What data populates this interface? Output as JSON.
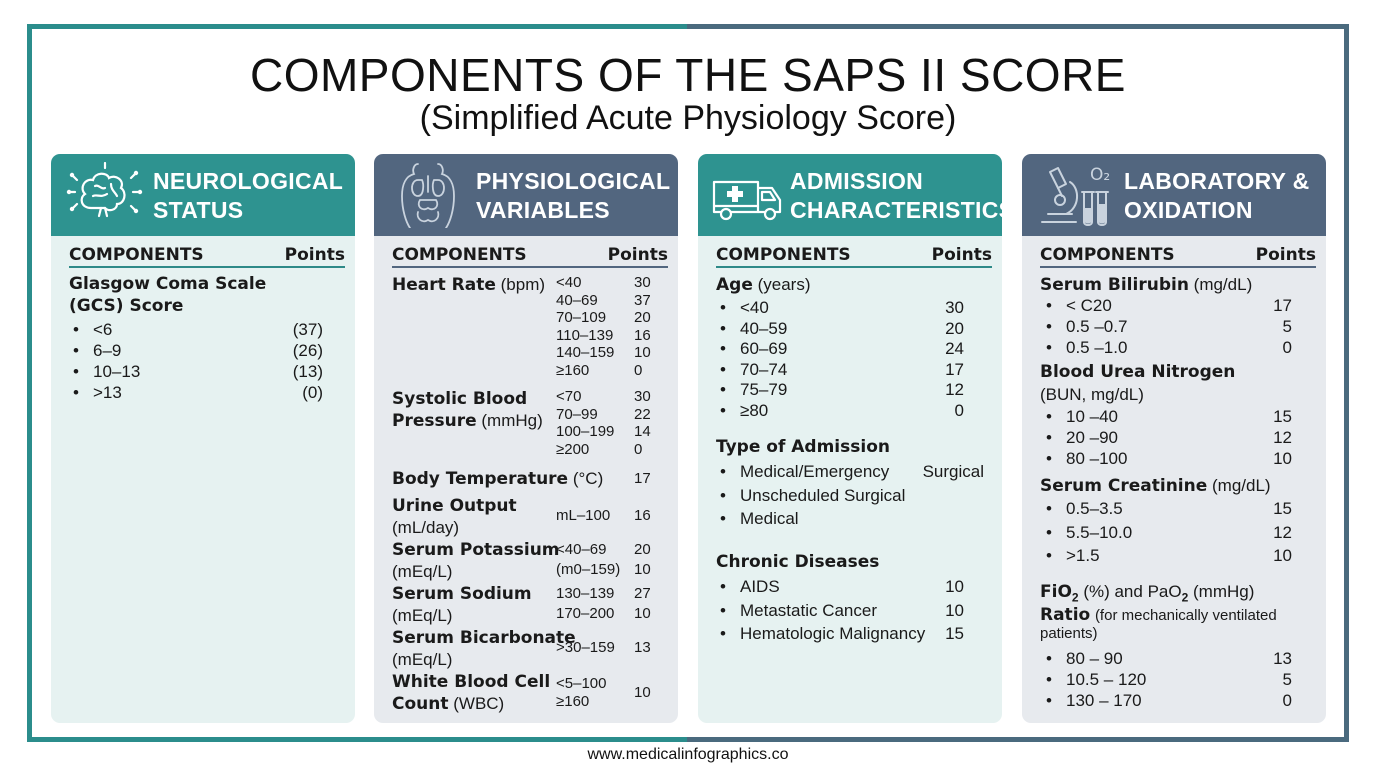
{
  "title": "COMPONENTS OF THE SAPS II SCORE",
  "subtitle": "(Simplified Acute Physiology Score)",
  "footer": "www.medicalinfographics.co",
  "colors": {
    "teal": "#2e9390",
    "slate": "#52667f",
    "teal_bg": "#e6f2f1",
    "slate_bg": "#e7eaee"
  },
  "col_components": "COMPONENTS",
  "col_points": "Points",
  "neuro": {
    "title_1": "NEUROLOGICAL",
    "title_2": "STATUS",
    "icon": "brain-icon",
    "gcs_1": "Glasgow Coma Scale",
    "gcs_2": "(GCS) Score",
    "items": [
      {
        "range": "<6",
        "points": "(37)"
      },
      {
        "range": "6–9",
        "points": "(26)"
      },
      {
        "range": "10–13",
        "points": "(13)"
      },
      {
        "range": ">13",
        "points": "(0)"
      }
    ]
  },
  "physio": {
    "title_1": "PHYSIOLOGICAL",
    "title_2": "VARIABLES",
    "icon": "organs-icon",
    "hr_label": "Heart Rate",
    "hr_unit": "(bpm)",
    "hr": [
      {
        "range": "<40",
        "points": "30"
      },
      {
        "range": "40–69",
        "points": "37"
      },
      {
        "range": "70–109",
        "points": "20"
      },
      {
        "range": "110–139",
        "points": "16"
      },
      {
        "range": "140–159",
        "points": "10"
      },
      {
        "range": "≥160",
        "points": "0"
      }
    ],
    "sbp_label_1": "Systolic Blood",
    "sbp_label_2": "Pressure",
    "sbp_unit": "(mmHg)",
    "sbp": [
      {
        "range": "<70",
        "points": "30"
      },
      {
        "range": "70–99",
        "points": "22"
      },
      {
        "range": "100–199",
        "points": "14"
      },
      {
        "range": "≥200",
        "points": "0"
      }
    ],
    "temp_label": "Body Temperature",
    "temp_unit": "(°C)",
    "temp_points": "17",
    "urine_label": "Urine Output",
    "urine_unit": "(mL/day)",
    "urine_range": "mL–100",
    "urine_points": "16",
    "potassium_label": "Serum Potassium",
    "potassium_unit": "(mEq/L)",
    "potassium": [
      {
        "range": "<40–69",
        "points": "20"
      },
      {
        "range": "(m0–159)",
        "points": "10"
      }
    ],
    "sodium_label": "Serum Sodium",
    "sodium_unit": "(mEq/L)",
    "sodium": [
      {
        "range": "130–139",
        "points": "27"
      },
      {
        "range": "170–200",
        "points": "10"
      }
    ],
    "bicarb_label": "Serum Bicarbonate",
    "bicarb_unit": "(mEq/L)",
    "bicarb_range": ">30–159",
    "bicarb_points": "13",
    "wbc_label_1": "White Blood Cell",
    "wbc_label_2": "Count",
    "wbc_unit": "(WBC)",
    "wbc_range_1": "<5–100",
    "wbc_range_2": "≥160",
    "wbc_points": "10"
  },
  "admission": {
    "title_1": "ADMISSION",
    "title_2": "CHARACTERISTICS",
    "icon": "ambulance-icon",
    "age_label": "Age",
    "age_unit": "(years)",
    "age": [
      {
        "range": "<40",
        "points": "30"
      },
      {
        "range": "40–59",
        "points": "20"
      },
      {
        "range": "60–69",
        "points": "24"
      },
      {
        "range": "70–74",
        "points": "17"
      },
      {
        "range": "75–79",
        "points": "12"
      },
      {
        "range": "≥80",
        "points": "0"
      }
    ],
    "type_label": "Type of Admission",
    "types": [
      {
        "label": "Medical/Emergency",
        "extra": "Surgical"
      },
      {
        "label": "Unscheduled Surgical",
        "extra": ""
      },
      {
        "label": "Medical",
        "extra": ""
      }
    ],
    "chronic_label": "Chronic Diseases",
    "chronic": [
      {
        "label": "AIDS",
        "points": "10"
      },
      {
        "label": "Metastatic Cancer",
        "points": "10"
      },
      {
        "label": "Hematologic Malignancy",
        "points": "15"
      }
    ]
  },
  "lab": {
    "title_1": "LABORATORY &",
    "title_2": "OXIDATION",
    "icon": "microscope-icon",
    "o2_text": "O₂",
    "bili_label": "Serum Bilirubin",
    "bili_unit": "(mg/dL)",
    "bili": [
      {
        "range": "< C20",
        "points": "17"
      },
      {
        "range": "0.5 –0.7",
        "points": "5"
      },
      {
        "range": "0.5 –1.0",
        "points": "0"
      }
    ],
    "bun_label": "Blood Urea Nitrogen",
    "bun_unit": "(BUN, mg/dL)",
    "bun": [
      {
        "range": "10 –40",
        "points": "15"
      },
      {
        "range": "20 –90",
        "points": "12"
      },
      {
        "range": "80 –100",
        "points": "10"
      }
    ],
    "creat_label": "Serum Creatinine",
    "creat_unit": "(mg/dL)",
    "creat": [
      {
        "range": "0.5–3.5",
        "points": "15"
      },
      {
        "range": "5.5–10.0",
        "points": "12"
      },
      {
        "range": ">1.5",
        "points": "10"
      }
    ],
    "fio2_a": "FiO",
    "fio2_sub": "2",
    "fio2_b": " (%) and PaO",
    "fio2_sub2": "2",
    "fio2_c": " (mmHg)",
    "ratio_label": "Ratio",
    "ratio_note": "(for mechanically ventilated",
    "ratio_note_2": "patients)",
    "ratio": [
      {
        "range": "80 – 90",
        "points": "13"
      },
      {
        "range": "10.5 – 120",
        "points": "5"
      },
      {
        "range": "130 – 170",
        "points": "0"
      }
    ]
  }
}
